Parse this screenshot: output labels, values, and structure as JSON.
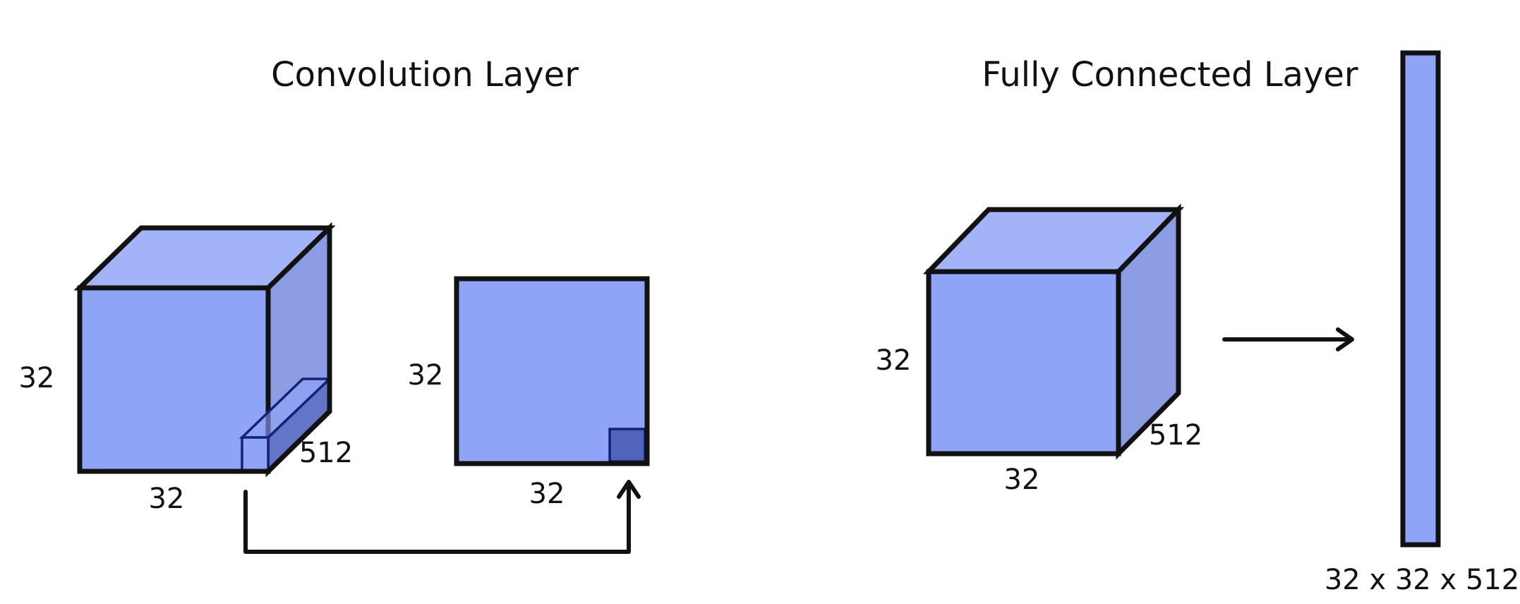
{
  "colors": {
    "front": "#8fa3f7",
    "top": "#a2b3f8",
    "side": "#8c9ce2",
    "kernel_side": "#6475c7",
    "kernel_output": "#5063bd",
    "outline": "#111111",
    "kernel_outline": "#14207a"
  },
  "convolution": {
    "title": "Convolution Layer",
    "input_height": "32",
    "input_width": "32",
    "input_depth": "512",
    "output_height": "32",
    "output_width": "32"
  },
  "fully_connected": {
    "title": "Fully Connected Layer",
    "input_height": "32",
    "input_width": "32",
    "input_depth": "512",
    "vector_label": "32 x 32 x 512"
  }
}
